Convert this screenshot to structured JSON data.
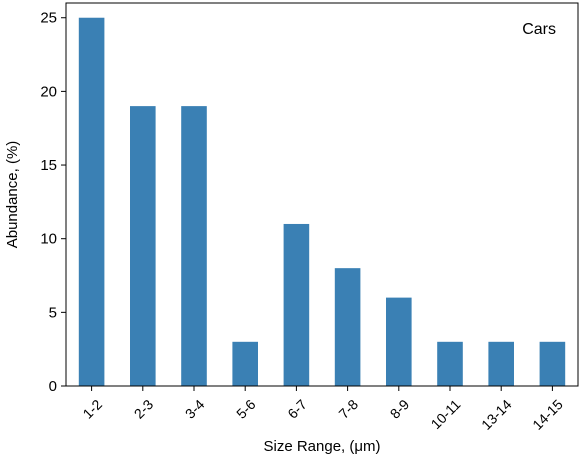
{
  "chart_data": {
    "type": "bar",
    "categories": [
      "1-2",
      "2-3",
      "3-4",
      "5-6",
      "6-7",
      "7-8",
      "8-9",
      "10-11",
      "13-14",
      "14-15"
    ],
    "values": [
      25,
      19,
      19,
      3,
      11,
      8,
      6,
      3,
      3,
      3
    ],
    "annotation": "Cars",
    "xlabel": "Size Range, (μm)",
    "ylabel": "Abundance, (%)",
    "ylim": [
      0,
      26
    ],
    "yticks": [
      0,
      5,
      10,
      15,
      20,
      25
    ],
    "bar_color": "#3a80b4",
    "grid": false,
    "legend": "none"
  }
}
